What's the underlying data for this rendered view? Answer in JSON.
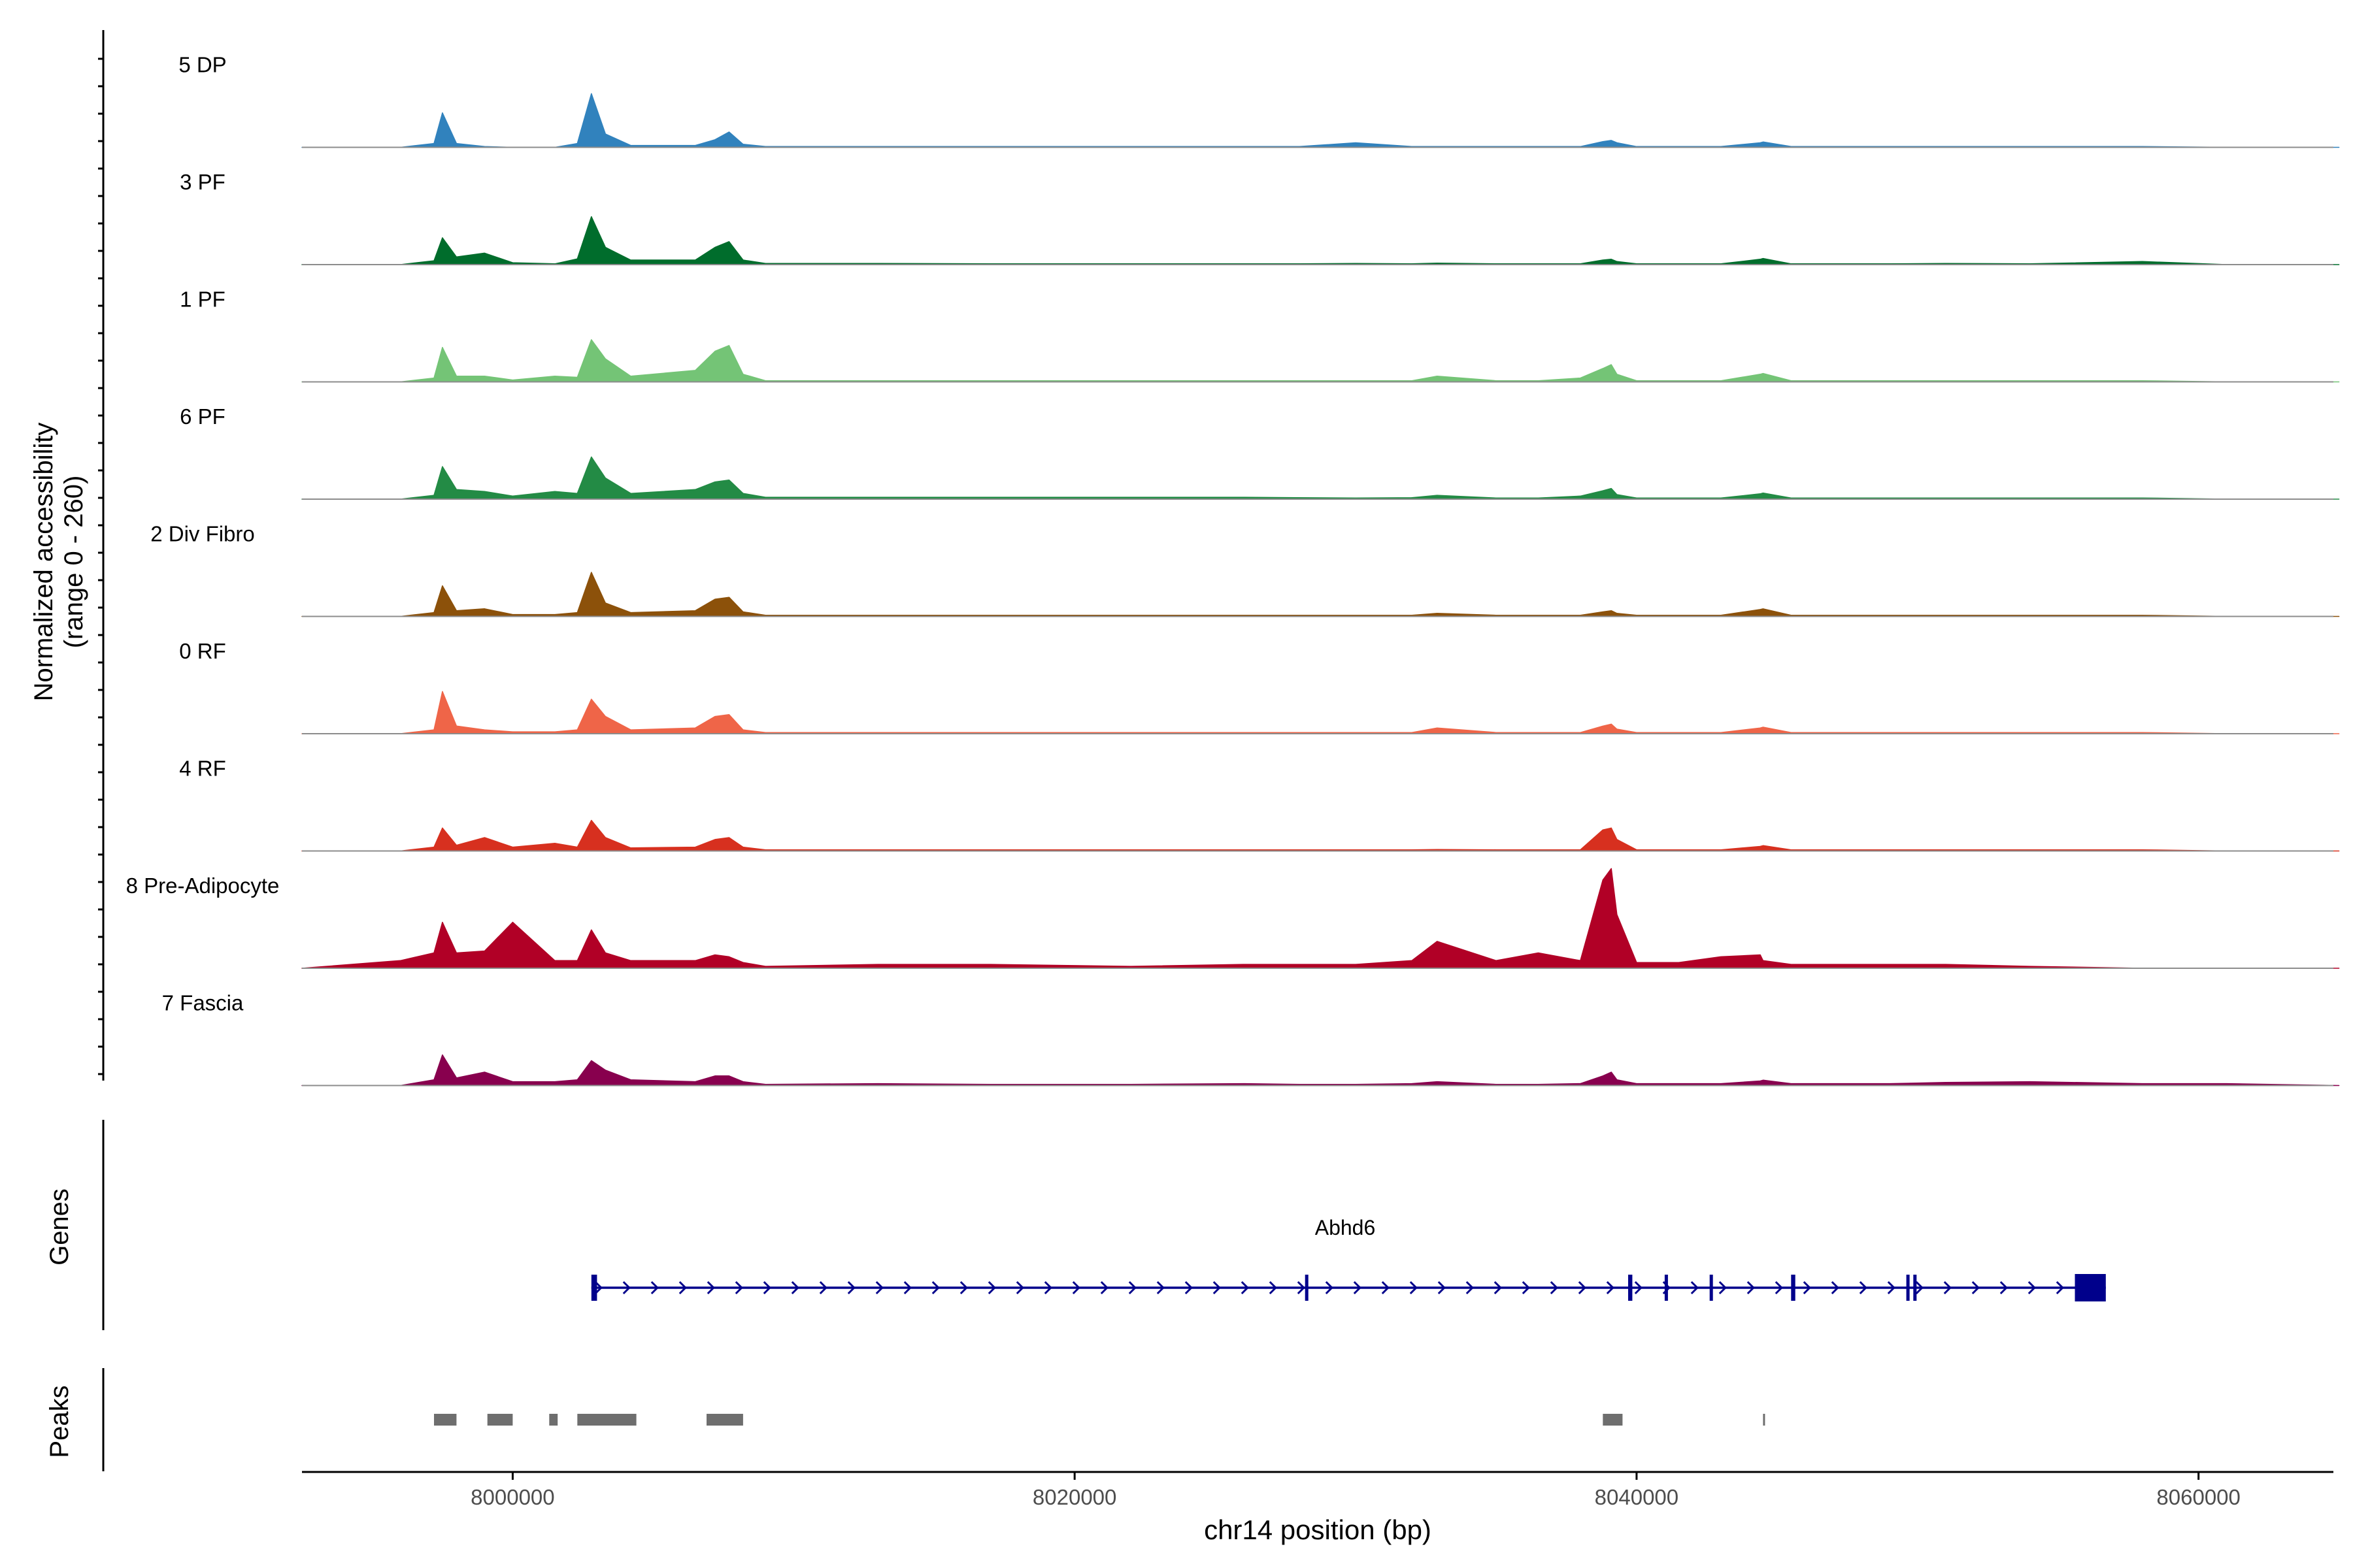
{
  "chart_data": [
    {
      "type": "area",
      "panel": "coverage",
      "ylabel_line1": "Normalized accessibility",
      "ylabel_line2": "(range 0 - 260)",
      "ylim": [
        0,
        260
      ],
      "x": [
        7992500,
        7996000,
        7997200,
        7997500,
        7998000,
        7999000,
        8000000,
        8001500,
        8002300,
        8002800,
        8003300,
        8004200,
        8006500,
        8007200,
        8007700,
        8008200,
        8009000,
        8013000,
        8017000,
        8022000,
        8026000,
        8028000,
        8030000,
        8032000,
        8032900,
        8035000,
        8036500,
        8038000,
        8038800,
        8039100,
        8039300,
        8040000,
        8041500,
        8043000,
        8044400,
        8044500,
        8045500,
        8047000,
        8049000,
        8051000,
        8054000,
        8058000,
        8061000,
        8065000
      ],
      "series": [
        {
          "name": "5 DP",
          "color": "#3182bd",
          "values": [
            0,
            0,
            10,
            90,
            10,
            2,
            0,
            0,
            10,
            140,
            35,
            5,
            5,
            20,
            40,
            8,
            2,
            2,
            2,
            2,
            2,
            2,
            12,
            2,
            2,
            2,
            2,
            2,
            15,
            18,
            12,
            2,
            2,
            2,
            12,
            14,
            2,
            2,
            2,
            2,
            2,
            2,
            0,
            0
          ]
        },
        {
          "name": "3 PF",
          "color": "#006d2c",
          "values": [
            0,
            0,
            10,
            70,
            20,
            30,
            5,
            2,
            15,
            125,
            45,
            12,
            12,
            45,
            60,
            12,
            3,
            3,
            2,
            2,
            2,
            2,
            3,
            2,
            4,
            2,
            2,
            2,
            12,
            14,
            8,
            2,
            2,
            2,
            14,
            16,
            2,
            2,
            2,
            3,
            2,
            8,
            0,
            0
          ]
        },
        {
          "name": "1 PF",
          "color": "#74c476",
          "values": [
            0,
            0,
            10,
            90,
            15,
            15,
            5,
            15,
            12,
            110,
            60,
            15,
            30,
            80,
            95,
            20,
            3,
            3,
            3,
            3,
            3,
            3,
            3,
            3,
            15,
            3,
            3,
            10,
            35,
            45,
            20,
            3,
            3,
            3,
            20,
            22,
            3,
            3,
            3,
            3,
            3,
            3,
            0,
            0
          ]
        },
        {
          "name": "6 PF",
          "color": "#238b45",
          "values": [
            0,
            0,
            10,
            85,
            25,
            20,
            8,
            20,
            15,
            110,
            55,
            15,
            25,
            45,
            50,
            15,
            5,
            5,
            5,
            5,
            5,
            4,
            3,
            4,
            10,
            3,
            3,
            8,
            22,
            28,
            12,
            3,
            3,
            3,
            14,
            16,
            3,
            3,
            3,
            3,
            3,
            3,
            0,
            0
          ]
        },
        {
          "name": "2 Div Fibro",
          "color": "#8c510a",
          "values": [
            0,
            0,
            10,
            80,
            15,
            20,
            5,
            5,
            10,
            115,
            35,
            10,
            15,
            45,
            50,
            12,
            3,
            3,
            3,
            3,
            3,
            3,
            3,
            3,
            8,
            3,
            3,
            3,
            12,
            15,
            8,
            3,
            3,
            3,
            18,
            20,
            3,
            3,
            3,
            3,
            3,
            3,
            0,
            0
          ]
        },
        {
          "name": "0 RF",
          "color": "#ef6548",
          "values": [
            0,
            0,
            10,
            110,
            20,
            10,
            5,
            5,
            10,
            90,
            45,
            10,
            15,
            45,
            50,
            10,
            3,
            3,
            3,
            3,
            3,
            3,
            3,
            3,
            15,
            3,
            3,
            3,
            20,
            25,
            12,
            3,
            3,
            3,
            15,
            17,
            3,
            3,
            3,
            3,
            3,
            3,
            0,
            0
          ]
        },
        {
          "name": "4 RF",
          "color": "#d7301f",
          "values": [
            0,
            0,
            10,
            60,
            15,
            35,
            10,
            20,
            10,
            80,
            35,
            8,
            10,
            30,
            35,
            10,
            3,
            3,
            3,
            3,
            3,
            3,
            3,
            3,
            4,
            3,
            3,
            3,
            55,
            60,
            30,
            3,
            3,
            3,
            12,
            14,
            3,
            3,
            3,
            3,
            3,
            3,
            0,
            0
          ]
        },
        {
          "name": "8 Pre-Adipocyte",
          "color": "#b10026",
          "values": [
            0,
            20,
            40,
            120,
            40,
            45,
            120,
            20,
            20,
            100,
            40,
            20,
            20,
            35,
            30,
            15,
            5,
            10,
            10,
            5,
            10,
            10,
            10,
            20,
            70,
            20,
            40,
            20,
            230,
            260,
            140,
            15,
            15,
            30,
            35,
            20,
            10,
            10,
            10,
            10,
            5,
            0,
            0,
            0
          ]
        },
        {
          "name": "7 Fascia",
          "color": "#88004e",
          "values": [
            0,
            0,
            15,
            80,
            20,
            35,
            10,
            10,
            15,
            65,
            40,
            15,
            10,
            25,
            25,
            10,
            3,
            5,
            3,
            3,
            5,
            3,
            3,
            5,
            10,
            3,
            3,
            5,
            25,
            35,
            15,
            5,
            5,
            5,
            12,
            14,
            5,
            5,
            5,
            8,
            10,
            5,
            5,
            0
          ]
        }
      ]
    },
    {
      "type": "gene_track",
      "panel": "genes",
      "ylabel": "Genes",
      "gene": "Abhd6",
      "strand": "+",
      "start": 8002800,
      "end": 8056700,
      "exons": [
        {
          "start": 8002800,
          "end": 8003000
        },
        {
          "start": 8028200,
          "end": 8028300
        },
        {
          "start": 8039700,
          "end": 8039850
        },
        {
          "start": 8041000,
          "end": 8041100
        },
        {
          "start": 8042600,
          "end": 8042700
        },
        {
          "start": 8045500,
          "end": 8045650
        },
        {
          "start": 8049600,
          "end": 8049700
        },
        {
          "start": 8049850,
          "end": 8049950
        },
        {
          "start": 8055600,
          "end": 8056700
        }
      ]
    },
    {
      "type": "peak_track",
      "panel": "peaks",
      "ylabel": "Peaks",
      "xlabel": "chr14 position (bp)",
      "xlim": [
        7992500,
        8064800
      ],
      "xticks": [
        8000000,
        8020000,
        8040000,
        8060000
      ],
      "xtick_labels": [
        "8000000",
        "8020000",
        "8040000",
        "8060000"
      ],
      "peaks": [
        {
          "start": 7997200,
          "end": 7998000
        },
        {
          "start": 7999100,
          "end": 8000000
        },
        {
          "start": 8001300,
          "end": 8001600
        },
        {
          "start": 8002300,
          "end": 8004400
        },
        {
          "start": 8006900,
          "end": 8008200
        },
        {
          "start": 8038800,
          "end": 8039500
        },
        {
          "start": 8044500,
          "end": 8044550
        }
      ]
    }
  ]
}
